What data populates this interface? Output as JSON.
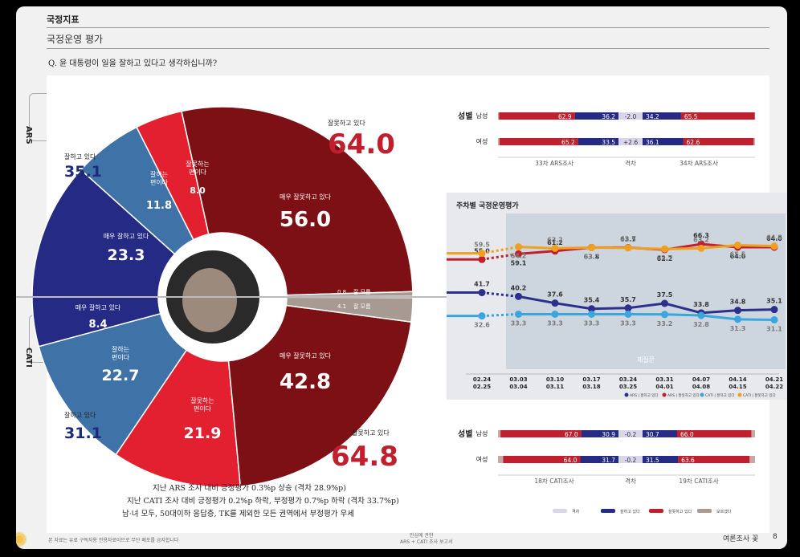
{
  "header": {
    "section": "국정지표",
    "subtitle": "국정운영 평가",
    "question": "Q. 윤 대통령이 일을 잘하고 있다고 생각하십니까?"
  },
  "tabs": {
    "ars": "ARS",
    "cati": "CATI"
  },
  "chart_data": [
    {
      "type": "pie",
      "name": "ARS",
      "values": [
        {
          "label": "매우 잘하고 있다",
          "value": 23.3
        },
        {
          "label": "잘하는 편이다",
          "value": 11.8
        },
        {
          "label": "잘못하는 편이다",
          "value": 8.0
        },
        {
          "label": "매우 잘못하고 있다",
          "value": 56.0
        },
        {
          "label": "잘 모름",
          "value": 0.8
        }
      ],
      "totals": [
        {
          "label": "잘하고 있다",
          "value": "35.1"
        },
        {
          "label": "잘못하고 있다",
          "value": "64.0"
        }
      ]
    },
    {
      "type": "pie",
      "name": "CATI",
      "values": [
        {
          "label": "매우 잘하고 있다",
          "value": 8.4
        },
        {
          "label": "잘하는 편이다",
          "value": 22.7
        },
        {
          "label": "잘못하는 편이다",
          "value": 21.9
        },
        {
          "label": "매우 잘못하고 있다",
          "value": 42.8
        },
        {
          "label": "잘 모름",
          "value": 4.1
        }
      ],
      "totals": [
        {
          "label": "잘하고 있다",
          "value": "31.1"
        },
        {
          "label": "잘못하고 있다",
          "value": "64.8"
        }
      ]
    },
    {
      "type": "line",
      "title": "주차별 국정운영평가",
      "categories": [
        "02.24\n02.25",
        "03.03\n03.04",
        "03.10\n03.11",
        "03.17\n03.18",
        "03.24\n03.25",
        "03.31\n04.01",
        "04.07\n04.08",
        "04.14\n04.15",
        "04.21\n04.22"
      ],
      "series": [
        {
          "name": "ARS | 잘하고 있다",
          "values": [
            41.7,
            40.2,
            37.6,
            35.4,
            35.7,
            37.5,
            33.8,
            34.8,
            35.1
          ],
          "color": "#2d2f8c"
        },
        {
          "name": "ARS | 잘못하고 있다",
          "values": [
            55.0,
            59.1,
            61.2,
            63.8,
            63.7,
            62.2,
            66.3,
            64.0,
            64.0
          ],
          "color": "#c0202e"
        },
        {
          "name": "CATI | 잘하고 있다",
          "values": [
            32.6,
            33.3,
            33.3,
            33.3,
            33.3,
            33.2,
            32.8,
            31.3,
            31.1
          ],
          "color": "#3aa6dd"
        },
        {
          "name": "CATI | 잘못하고 있다",
          "values": [
            59.5,
            64.2,
            63.2,
            63.7,
            63.5,
            62.7,
            63.2,
            65.5,
            64.8
          ],
          "color": "#f0a020"
        }
      ],
      "overlay": "재질문"
    },
    {
      "type": "bar",
      "name": "ARS 성별",
      "categories": [
        "남성",
        "여성"
      ],
      "series": [
        {
          "name": "33차 ARS조사",
          "values": [
            [
              62.9,
              36.2
            ],
            [
              65.2,
              33.5
            ]
          ]
        },
        {
          "name": "격차",
          "values": [
            "-2.0",
            "+2.6"
          ]
        },
        {
          "name": "34차 ARS조사",
          "values": [
            [
              34.2,
              65.5
            ],
            [
              36.1,
              62.6
            ]
          ]
        }
      ]
    },
    {
      "type": "bar",
      "name": "CATI 성별",
      "categories": [
        "남성",
        "여성"
      ],
      "series": [
        {
          "name": "18차 CATI조사",
          "values": [
            [
              67.0,
              30.9
            ],
            [
              64.0,
              31.7
            ]
          ]
        },
        {
          "name": "격차",
          "values": [
            "-0.2",
            "-0.2"
          ]
        },
        {
          "name": "19차 CATI조사",
          "values": [
            [
              30.7,
              66.0
            ],
            [
              31.5,
              63.6
            ]
          ]
        }
      ]
    }
  ],
  "labels": {
    "ars_dk": "잘 모름",
    "cati_dk": "잘 모름",
    "ars_dk_val": "0.8",
    "cati_dk_val": "4.1",
    "gender": "성별",
    "male": "남성",
    "female": "여성",
    "gap": "격차",
    "ars_prev": "33차 ARS조사",
    "ars_next": "34차 ARS조사",
    "cati_prev": "18차 CATI조사",
    "cati_next": "19차 CATI조사"
  },
  "bar_legend": [
    "격차",
    "잘하고 있다",
    "잘못하고 있다",
    "모르겠다"
  ],
  "notes": [
    "지난 ARS 조사 대비 긍정평가 0.3%p 상승 (격차 28.9%p)",
    "지난 CATI 조사 대비 긍정평가 0.2%p 하락, 부정평가 0.7%p 하락 (격차 33.7%p)",
    "남·녀 모두, 50대이하 응답층, TK를 제외한 모든 권역에서 부정평가 우세"
  ],
  "footer": {
    "left": "본 자료는 유료 구독자용 전용자료이므로 무단 배포를 금지합니다",
    "center1": "민심에 관한",
    "center2": "ARS + CATI 조사 보고서",
    "right": "여론조사 꽃",
    "page": "8"
  },
  "colors": {
    "dark_red": "#7d1015",
    "red": "#e3202f",
    "navy": "#252a85",
    "blue": "#3f72a6",
    "gray": "#a79a92"
  }
}
